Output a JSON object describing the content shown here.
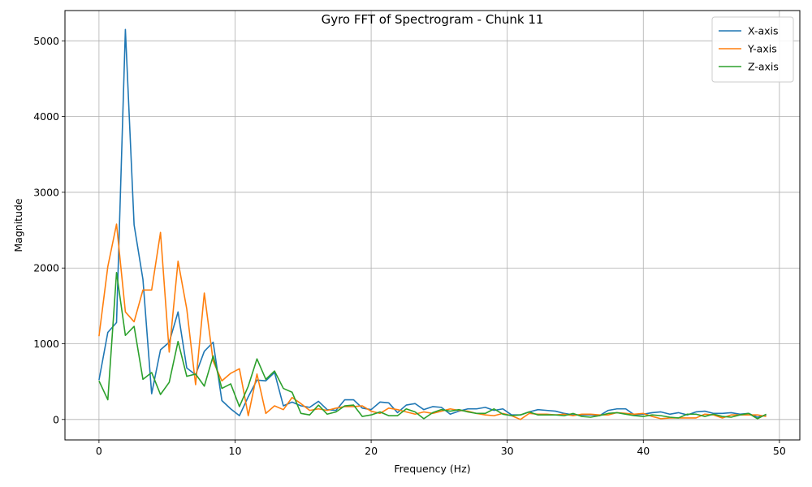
{
  "chart_data": {
    "type": "line",
    "title": "Gyro FFT of Spectrogram - Chunk 11",
    "xlabel": "Frequency (Hz)",
    "ylabel": "Magnitude",
    "xlim": [
      -2.5,
      51.5
    ],
    "ylim": [
      -270,
      5400
    ],
    "xticks": [
      0,
      10,
      20,
      30,
      40,
      50
    ],
    "yticks": [
      0,
      1000,
      2000,
      3000,
      4000,
      5000
    ],
    "grid": true,
    "legend_position": "top-right",
    "x": [
      0.0,
      0.65,
      1.29,
      1.94,
      2.58,
      3.23,
      3.87,
      4.52,
      5.16,
      5.81,
      6.45,
      7.1,
      7.74,
      8.39,
      9.03,
      9.68,
      10.32,
      10.97,
      11.61,
      12.26,
      12.9,
      13.55,
      14.19,
      14.84,
      15.48,
      16.13,
      16.77,
      17.42,
      18.06,
      18.71,
      19.35,
      20.0,
      20.65,
      21.29,
      21.94,
      22.58,
      23.23,
      23.87,
      24.52,
      25.16,
      25.81,
      26.45,
      27.1,
      27.74,
      28.39,
      29.03,
      29.68,
      30.32,
      30.97,
      31.61,
      32.26,
      32.9,
      33.55,
      34.19,
      34.84,
      35.48,
      36.13,
      36.77,
      37.42,
      38.06,
      38.71,
      39.35,
      40.0,
      40.65,
      41.29,
      41.94,
      42.58,
      43.23,
      43.87,
      44.52,
      45.16,
      45.81,
      46.45,
      47.1,
      47.74,
      48.39,
      49.03
    ],
    "series": [
      {
        "name": "X-axis",
        "color": "#1f77b4",
        "values": [
          520,
          1150,
          1280,
          5150,
          2570,
          1850,
          340,
          920,
          1020,
          1420,
          680,
          590,
          900,
          1020,
          250,
          140,
          50,
          300,
          520,
          510,
          620,
          180,
          230,
          180,
          160,
          240,
          130,
          120,
          260,
          260,
          150,
          130,
          230,
          220,
          90,
          190,
          210,
          130,
          170,
          160,
          70,
          110,
          140,
          140,
          160,
          120,
          140,
          60,
          60,
          100,
          130,
          120,
          110,
          80,
          60,
          60,
          60,
          50,
          120,
          140,
          140,
          60,
          70,
          90,
          100,
          70,
          90,
          60,
          100,
          110,
          80,
          80,
          90,
          70,
          80,
          30,
          60
        ]
      },
      {
        "name": "Y-axis",
        "color": "#ff7f0e",
        "values": [
          1100,
          2020,
          2580,
          1420,
          1290,
          1710,
          1710,
          2470,
          890,
          2090,
          1460,
          460,
          1670,
          770,
          510,
          610,
          670,
          50,
          600,
          80,
          180,
          130,
          290,
          210,
          120,
          140,
          120,
          150,
          170,
          170,
          180,
          110,
          80,
          150,
          130,
          100,
          70,
          100,
          80,
          110,
          140,
          120,
          110,
          80,
          60,
          50,
          80,
          50,
          0,
          80,
          70,
          70,
          60,
          70,
          50,
          70,
          70,
          60,
          60,
          90,
          80,
          70,
          80,
          40,
          10,
          20,
          20,
          20,
          20,
          70,
          60,
          20,
          60,
          60,
          60,
          60,
          40
        ]
      },
      {
        "name": "Z-axis",
        "color": "#2ca02c",
        "values": [
          510,
          260,
          1940,
          1110,
          1230,
          530,
          620,
          330,
          490,
          1030,
          570,
          600,
          440,
          840,
          410,
          470,
          170,
          440,
          800,
          530,
          640,
          410,
          360,
          80,
          60,
          190,
          70,
          100,
          180,
          190,
          40,
          60,
          100,
          50,
          50,
          140,
          100,
          10,
          90,
          130,
          110,
          130,
          100,
          80,
          80,
          140,
          70,
          50,
          60,
          100,
          60,
          60,
          60,
          50,
          80,
          40,
          30,
          50,
          80,
          90,
          70,
          50,
          40,
          60,
          50,
          30,
          20,
          70,
          70,
          40,
          70,
          40,
          30,
          60,
          80,
          10,
          70
        ]
      }
    ]
  }
}
